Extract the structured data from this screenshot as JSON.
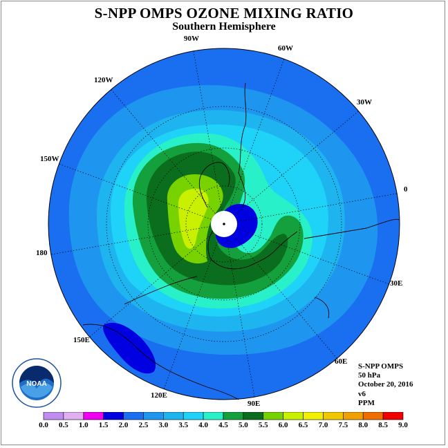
{
  "header": {
    "title": "S-NPP OMPS OZONE MIXING RATIO",
    "subtitle": "Southern Hemisphere"
  },
  "map": {
    "projection": "south-polar-stereographic",
    "longitude_labels": [
      "90W",
      "60W",
      "30W",
      "0",
      "30E",
      "60E",
      "90E",
      "120E",
      "150E",
      "180",
      "150W",
      "120W"
    ],
    "pole_marker": "center-dot",
    "grid": "dotted"
  },
  "info": {
    "instrument": "S-NPP OMPS",
    "level": "50 hPa",
    "date": "October 20, 2016",
    "version": "v6",
    "units": "PPM"
  },
  "logo": {
    "name": "NOAA",
    "icon": "noaa-logo-icon"
  },
  "colorbar": {
    "ticks": [
      "0.0",
      "0.5",
      "1.0",
      "1.5",
      "2.0",
      "2.5",
      "3.0",
      "3.5",
      "4.0",
      "4.5",
      "5.0",
      "5.5",
      "6.0",
      "6.5",
      "7.0",
      "7.5",
      "8.0",
      "8.5",
      "9.0"
    ],
    "colors": [
      "#bf8cf0",
      "#e0b0f0",
      "#f000f0",
      "#0000e0",
      "#1a6ef0",
      "#1e96f0",
      "#1eb4f0",
      "#1ed2f8",
      "#28f0c8",
      "#14a03c",
      "#0a6e1e",
      "#78d200",
      "#c8f000",
      "#f0f000",
      "#f0c800",
      "#f0a000",
      "#f06e00",
      "#f00000",
      "#8c5a32"
    ]
  }
}
